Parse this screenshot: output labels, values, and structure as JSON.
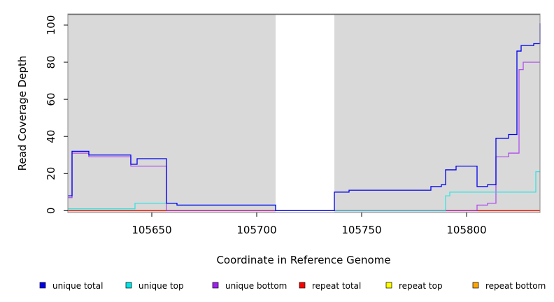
{
  "chart_data": {
    "type": "line",
    "step": true,
    "xlabel": "Coordinate in Reference Genome",
    "ylabel": "Read Coverage Depth",
    "xlim": [
      105610,
      105835
    ],
    "ylim": [
      -1,
      106
    ],
    "xticks": [
      105650,
      105700,
      105750,
      105800
    ],
    "yticks": [
      0,
      20,
      40,
      60,
      80,
      100
    ],
    "shaded_regions": [
      [
        105610,
        105709
      ],
      [
        105737,
        105835
      ]
    ],
    "legend_position": "bottom",
    "series": [
      {
        "name": "unique total",
        "color": "#0000ee",
        "x": [
          105610,
          105612,
          105620,
          105640,
          105643,
          105652,
          105657,
          105662,
          105667,
          105709,
          105737,
          105744,
          105764,
          105783,
          105788,
          105790,
          105795,
          105805,
          105810,
          105814,
          105820,
          105824,
          105826,
          105832,
          105835
        ],
        "y": [
          8,
          32,
          30,
          25,
          28,
          28,
          4,
          3,
          3,
          0,
          10,
          11,
          11,
          13,
          14,
          22,
          24,
          13,
          14,
          39,
          41,
          86,
          89,
          90,
          101
        ]
      },
      {
        "name": "unique top",
        "color": "#00e5e5",
        "x": [
          105610,
          105642,
          105657,
          105662,
          105667,
          105709,
          105737,
          105790,
          105792,
          105800,
          105825,
          105833,
          105835
        ],
        "y": [
          1,
          4,
          4,
          3,
          3,
          0,
          0,
          8,
          10,
          10,
          10,
          21,
          21
        ],
        "dim_until": 105709
      },
      {
        "name": "unique bottom",
        "color": "#a020f0",
        "x": [
          105610,
          105612,
          105620,
          105640,
          105652,
          105657,
          105709,
          105737,
          105805,
          105810,
          105814,
          105820,
          105825,
          105827,
          105835
        ],
        "y": [
          7,
          31,
          29,
          24,
          24,
          0,
          0,
          0,
          3,
          4,
          29,
          31,
          76,
          80,
          80
        ],
        "dim_until": 105709
      },
      {
        "name": "repeat total",
        "color": "#ff0000",
        "x": [
          105610,
          105835
        ],
        "y": [
          0,
          0
        ]
      },
      {
        "name": "repeat top",
        "color": "#ffff00",
        "x": [
          105610,
          105835
        ],
        "y": [
          0,
          0
        ]
      },
      {
        "name": "repeat bottom",
        "color": "#ffa500",
        "x": [
          105610,
          105835
        ],
        "y": [
          0,
          0
        ]
      }
    ]
  }
}
